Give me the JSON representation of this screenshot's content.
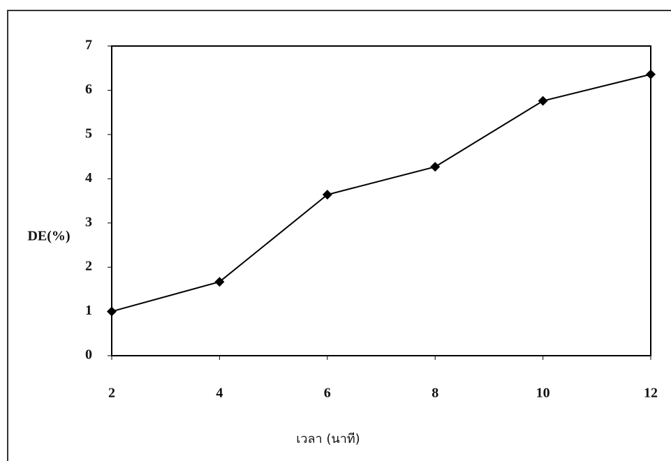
{
  "chart_data": {
    "type": "line",
    "x": [
      2,
      4,
      6,
      8,
      10,
      12
    ],
    "series": [
      {
        "color": "#000000",
        "values": [
          1.0,
          1.67,
          3.64,
          4.27,
          5.76,
          6.36
        ]
      }
    ],
    "xlim": [
      2,
      12
    ],
    "xticks": [
      2,
      4,
      6,
      8,
      10,
      12
    ],
    "ylim": [
      0,
      7
    ],
    "yticks": [
      0,
      1,
      2,
      3,
      4,
      5,
      6,
      7
    ],
    "xlabel": "เวลา (นาที)",
    "ylabel": "DE(%)",
    "grid": false
  }
}
